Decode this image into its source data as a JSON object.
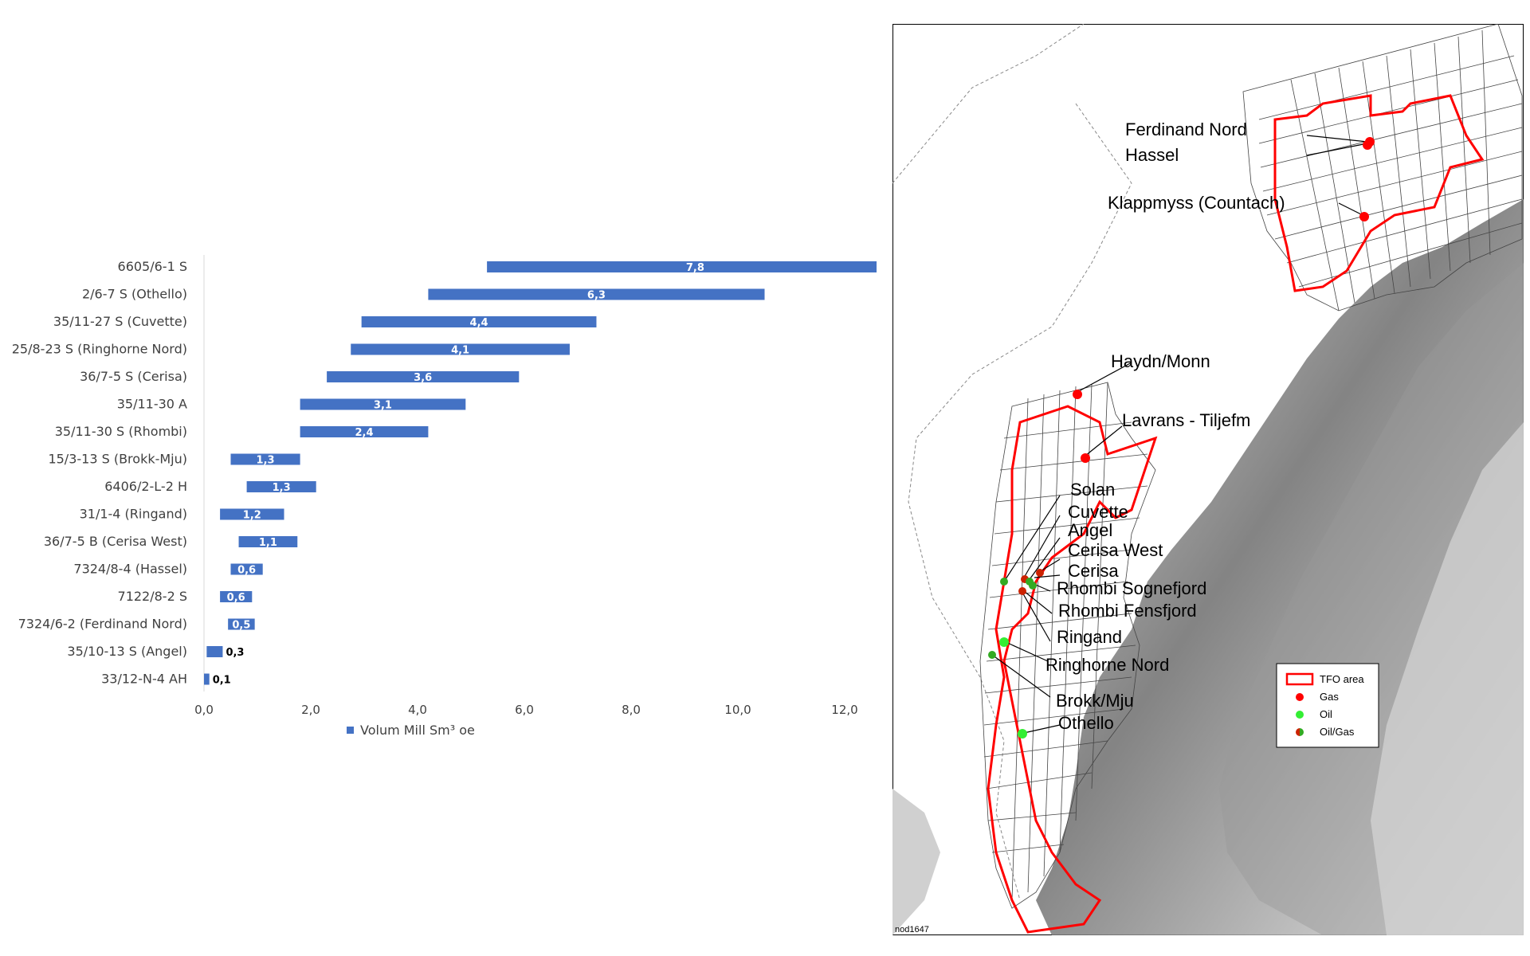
{
  "chart_data": {
    "type": "bar",
    "orientation": "horizontal",
    "stacked_floating": true,
    "categories": [
      "6605/6-1 S",
      "2/6-7 S (Othello)",
      "35/11-27 S (Cuvette)",
      "25/8-23 S (Ringhorne Nord)",
      "36/7-5 S (Cerisa)",
      "35/11-30 A",
      "35/11-30 S (Rhombi)",
      "15/3-13 S (Brokk-Mju)",
      "6406/2-L-2 H",
      "31/1-4 (Ringand)",
      "36/7-5 B (Cerisa West)",
      "7324/8-4 (Hassel)",
      "7122/8-2 S",
      "7324/6-2 (Ferdinand Nord)",
      "35/10-13 S (Angel)",
      "33/12-N-4 AH"
    ],
    "start": [
      5.3,
      4.2,
      2.95,
      2.75,
      2.3,
      1.8,
      1.8,
      0.5,
      0.8,
      0.3,
      0.65,
      0.5,
      0.3,
      0.45,
      0.05,
      0.0
    ],
    "values": [
      7.8,
      6.3,
      4.4,
      4.1,
      3.6,
      3.1,
      2.4,
      1.3,
      1.3,
      1.2,
      1.1,
      0.6,
      0.6,
      0.5,
      0.3,
      0.1
    ],
    "display_values": [
      "7,8",
      "6,3",
      "4,4",
      "4,1",
      "3,6",
      "3,1",
      "2,4",
      "1,3",
      "1,3",
      "1,2",
      "1,1",
      "0,6",
      "0,6",
      "0,5",
      "0,3",
      "0,1"
    ],
    "series": [
      {
        "name": "Volum Mill Sm³ oe",
        "color": "#4472c4"
      }
    ],
    "xlim": [
      0,
      12
    ],
    "xticks": [
      "0,0",
      "2,0",
      "4,0",
      "6,0",
      "8,0",
      "10,0",
      "12,0"
    ],
    "grid": false,
    "legend_position": "bottom"
  },
  "map": {
    "map_id": "nod1647",
    "labels": {
      "ferdinand_nord": "Ferdinand Nord",
      "hassel": "Hassel",
      "klappmyss": "Klappmyss (Countach)",
      "haydn": "Haydn/Monn",
      "lavrans": "Lavrans - Tiljefm",
      "solan": "Solan",
      "cuvette": "Cuvette",
      "angel": "Angel",
      "cerisa_west": "Cerisa West",
      "cerisa": "Cerisa",
      "rhombi_sogne": "Rhombi Sognefjord",
      "rhombi_fens": "Rhombi Fensfjord",
      "ringand": "Ringand",
      "ringhorne": "Ringhorne Nord",
      "brokk": "Brokk/Mju",
      "othello": "Othello"
    },
    "legend": {
      "tfo": "TFO area",
      "gas": "Gas",
      "oil": "Oil",
      "oilgas": "Oil/Gas"
    },
    "colors": {
      "tfo": "#ff0000",
      "gas": "#ff0000",
      "oil": "#33ee33",
      "oilgas_a": "#cc2200",
      "oilgas_b": "#33aa22"
    }
  }
}
